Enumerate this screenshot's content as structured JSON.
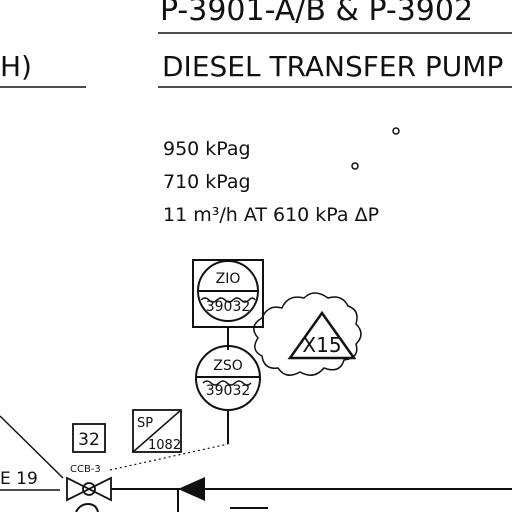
{
  "header": {
    "title_line1": "P-3901-A/B & P-3902",
    "title_line2": "DIESEL TRANSFER PUMP",
    "left_fragment": "H)"
  },
  "specs": {
    "line1": "950 kPag",
    "line2": "710 kPag",
    "line3": "11 m³/h AT 610 kPa ΔP"
  },
  "instruments": {
    "zio": {
      "tag": "ZIO",
      "number": "39032"
    },
    "zso": {
      "tag": "ZSO",
      "number": "39032"
    },
    "sp": {
      "tag": "SP",
      "number": "1082"
    },
    "box32": {
      "label": "32"
    },
    "valve": {
      "label": "CCB-3"
    },
    "revision": {
      "label": "X15"
    },
    "left_label": {
      "label": "E 19"
    }
  },
  "colors": {
    "ink": "#111111",
    "paper": "#ffffff"
  }
}
